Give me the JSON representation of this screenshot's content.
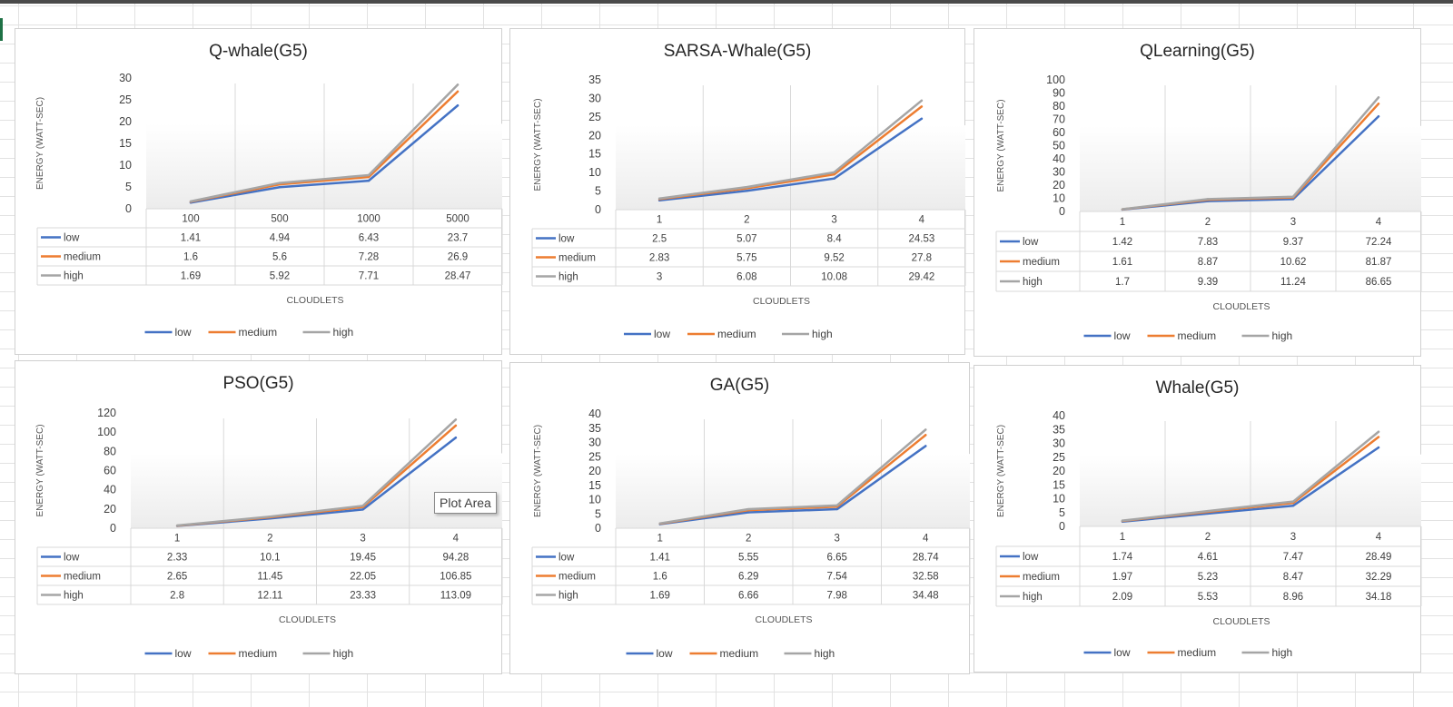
{
  "colors": {
    "low": "#4472c4",
    "medium": "#ed7d31",
    "high": "#a5a5a5"
  },
  "tooltip": "Plot Area",
  "chart_data": [
    {
      "type": "line",
      "title": "Q-whale(G5)",
      "xlabel": "CLOUDLETS",
      "ylabel": "ENERGY (WATT-SEC)",
      "categories": [
        "100",
        "500",
        "1000",
        "5000"
      ],
      "ylim": [
        0,
        30
      ],
      "yticks": [
        "0",
        "5",
        "10",
        "15",
        "20",
        "25",
        "30"
      ],
      "legend_position": "bottom",
      "series": [
        {
          "name": "low",
          "values": [
            1.41,
            4.94,
            6.43,
            23.7
          ],
          "labels": [
            "1.41",
            "4.94",
            "6.43",
            "23.7"
          ]
        },
        {
          "name": "medium",
          "values": [
            1.6,
            5.6,
            7.28,
            26.9
          ],
          "labels": [
            "1.6",
            "5.6",
            "7.28",
            "26.9"
          ]
        },
        {
          "name": "high",
          "values": [
            1.69,
            5.92,
            7.71,
            28.47
          ],
          "labels": [
            "1.69",
            "5.92",
            "7.71",
            "28.47"
          ]
        }
      ]
    },
    {
      "type": "line",
      "title": "SARSA-Whale(G5)",
      "xlabel": "CLOUDLETS",
      "ylabel": "ENERGY (WATT-SEC)",
      "categories": [
        "1",
        "2",
        "3",
        "4"
      ],
      "ylim": [
        0,
        35
      ],
      "yticks": [
        "0",
        "5",
        "10",
        "15",
        "20",
        "25",
        "30",
        "35"
      ],
      "legend_position": "bottom",
      "series": [
        {
          "name": "low",
          "values": [
            2.5,
            5.07,
            8.4,
            24.53
          ],
          "labels": [
            "2.5",
            "5.07",
            "8.4",
            "24.53"
          ]
        },
        {
          "name": "medium",
          "values": [
            2.83,
            5.75,
            9.52,
            27.8
          ],
          "labels": [
            "2.83",
            "5.75",
            "9.52",
            "27.8"
          ]
        },
        {
          "name": "high",
          "values": [
            3,
            6.08,
            10.08,
            29.42
          ],
          "labels": [
            "3",
            "6.08",
            "10.08",
            "29.42"
          ]
        }
      ]
    },
    {
      "type": "line",
      "title": "QLearning(G5)",
      "xlabel": "CLOUDLETS",
      "ylabel": "ENERGY (WATT-SEC)",
      "categories": [
        "1",
        "2",
        "3",
        "4"
      ],
      "ylim": [
        0,
        100
      ],
      "yticks": [
        "0",
        "10",
        "20",
        "30",
        "40",
        "50",
        "60",
        "70",
        "80",
        "90",
        "100"
      ],
      "legend_position": "bottom",
      "series": [
        {
          "name": "low",
          "values": [
            1.42,
            7.83,
            9.37,
            72.24
          ],
          "labels": [
            "1.42",
            "7.83",
            "9.37",
            "72.24"
          ]
        },
        {
          "name": "medium",
          "values": [
            1.61,
            8.87,
            10.62,
            81.87
          ],
          "labels": [
            "1.61",
            "8.87",
            "10.62",
            "81.87"
          ]
        },
        {
          "name": "high",
          "values": [
            1.7,
            9.39,
            11.24,
            86.65
          ],
          "labels": [
            "1.7",
            "9.39",
            "11.24",
            "86.65"
          ]
        }
      ]
    },
    {
      "type": "line",
      "title": "PSO(G5)",
      "xlabel": "CLOUDLETS",
      "ylabel": "ENERGY (WATT-SEC)",
      "categories": [
        "1",
        "2",
        "3",
        "4"
      ],
      "ylim": [
        0,
        120
      ],
      "yticks": [
        "0",
        "20",
        "40",
        "60",
        "80",
        "100",
        "120"
      ],
      "legend_position": "bottom",
      "series": [
        {
          "name": "low",
          "values": [
            2.33,
            10.1,
            19.45,
            94.28
          ],
          "labels": [
            "2.33",
            "10.1",
            "19.45",
            "94.28"
          ]
        },
        {
          "name": "medium",
          "values": [
            2.65,
            11.45,
            22.05,
            106.85
          ],
          "labels": [
            "2.65",
            "11.45",
            "22.05",
            "106.85"
          ]
        },
        {
          "name": "high",
          "values": [
            2.8,
            12.11,
            23.33,
            113.09
          ],
          "labels": [
            "2.8",
            "12.11",
            "23.33",
            "113.09"
          ]
        }
      ]
    },
    {
      "type": "line",
      "title": "GA(G5)",
      "xlabel": "CLOUDLETS",
      "ylabel": "ENERGY (WATT-SEC)",
      "categories": [
        "1",
        "2",
        "3",
        "4"
      ],
      "ylim": [
        0,
        40
      ],
      "yticks": [
        "0",
        "5",
        "10",
        "15",
        "20",
        "25",
        "30",
        "35",
        "40"
      ],
      "legend_position": "bottom",
      "series": [
        {
          "name": "low",
          "values": [
            1.41,
            5.55,
            6.65,
            28.74
          ],
          "labels": [
            "1.41",
            "5.55",
            "6.65",
            "28.74"
          ]
        },
        {
          "name": "medium",
          "values": [
            1.6,
            6.29,
            7.54,
            32.58
          ],
          "labels": [
            "1.6",
            "6.29",
            "7.54",
            "32.58"
          ]
        },
        {
          "name": "high",
          "values": [
            1.69,
            6.66,
            7.98,
            34.48
          ],
          "labels": [
            "1.69",
            "6.66",
            "7.98",
            "34.48"
          ]
        }
      ]
    },
    {
      "type": "line",
      "title": "Whale(G5)",
      "xlabel": "CLOUDLETS",
      "ylabel": "ENERGY (WATT-SEC)",
      "categories": [
        "1",
        "2",
        "3",
        "4"
      ],
      "ylim": [
        0,
        40
      ],
      "yticks": [
        "0",
        "5",
        "10",
        "15",
        "20",
        "25",
        "30",
        "35",
        "40"
      ],
      "legend_position": "bottom",
      "series": [
        {
          "name": "low",
          "values": [
            1.74,
            4.61,
            7.47,
            28.49
          ],
          "labels": [
            "1.74",
            "4.61",
            "7.47",
            "28.49"
          ]
        },
        {
          "name": "medium",
          "values": [
            1.97,
            5.23,
            8.47,
            32.29
          ],
          "labels": [
            "1.97",
            "5.23",
            "8.47",
            "32.29"
          ]
        },
        {
          "name": "high",
          "values": [
            2.09,
            5.53,
            8.96,
            34.18
          ],
          "labels": [
            "2.09",
            "5.53",
            "8.96",
            "34.18"
          ]
        }
      ]
    }
  ]
}
